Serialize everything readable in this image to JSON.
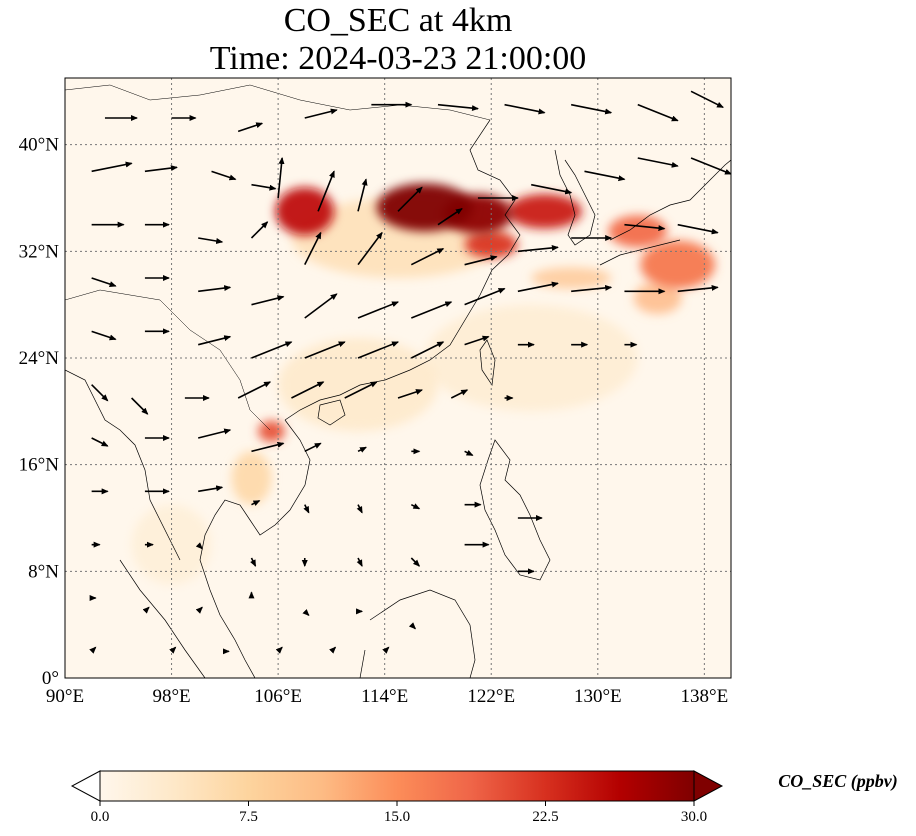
{
  "chart_data": {
    "type": "heatmap",
    "title": "CO_SEC at 4km",
    "subtitle": "Time: 2024-03-23 21:00:00",
    "xlabel": "",
    "ylabel": "",
    "x_ticks": [
      "90°E",
      "98°E",
      "106°E",
      "114°E",
      "122°E",
      "130°E",
      "138°E"
    ],
    "x_tick_values": [
      90,
      98,
      106,
      114,
      122,
      130,
      138
    ],
    "y_ticks": [
      "0°",
      "8°N",
      "16°N",
      "24°N",
      "32°N",
      "40°N"
    ],
    "y_tick_values": [
      0,
      8,
      16,
      24,
      32,
      40
    ],
    "xlim": [
      90,
      140
    ],
    "ylim": [
      0,
      45
    ],
    "grid": true,
    "colorbar": {
      "label": "CO_SEC (ppbv)",
      "ticks": [
        "0.0",
        "7.5",
        "15.0",
        "22.5",
        "30.0"
      ],
      "tick_values": [
        0,
        7.5,
        15,
        22.5,
        30
      ],
      "range": [
        0,
        30
      ],
      "extend": "both",
      "colormap": "OrRd",
      "colors": [
        "#fff7ec",
        "#fee8c8",
        "#fdd49e",
        "#fdbb84",
        "#fc8d59",
        "#ef6548",
        "#d7301f",
        "#b30000",
        "#7f0000"
      ]
    },
    "plumes": [
      {
        "lon": 108.0,
        "lat": 35.0,
        "dlon": 2.2,
        "dlat": 1.8,
        "value": 25
      },
      {
        "lon": 117.0,
        "lat": 35.3,
        "dlon": 3.6,
        "dlat": 1.8,
        "value": 32
      },
      {
        "lon": 121.0,
        "lat": 34.8,
        "dlon": 2.6,
        "dlat": 1.5,
        "value": 29
      },
      {
        "lon": 126.0,
        "lat": 35.0,
        "dlon": 2.8,
        "dlat": 1.3,
        "value": 24
      },
      {
        "lon": 122.0,
        "lat": 32.5,
        "dlon": 2.0,
        "dlat": 1.0,
        "value": 22
      },
      {
        "lon": 133.0,
        "lat": 33.5,
        "dlon": 2.2,
        "dlat": 1.2,
        "value": 18
      },
      {
        "lon": 136.0,
        "lat": 31.0,
        "dlon": 2.8,
        "dlat": 1.8,
        "value": 17
      },
      {
        "lon": 134.5,
        "lat": 28.5,
        "dlon": 1.8,
        "dlat": 1.2,
        "value": 12
      },
      {
        "lon": 128.0,
        "lat": 30.0,
        "dlon": 3.0,
        "dlat": 0.8,
        "value": 10
      },
      {
        "lon": 105.5,
        "lat": 18.5,
        "dlon": 1.0,
        "dlat": 0.8,
        "value": 20
      },
      {
        "lon": 104.0,
        "lat": 15.0,
        "dlon": 1.5,
        "dlat": 2.0,
        "value": 8
      },
      {
        "lon": 112.0,
        "lat": 22.0,
        "dlon": 6.0,
        "dlat": 3.5,
        "value": 4
      },
      {
        "lon": 125.0,
        "lat": 24.0,
        "dlon": 8.0,
        "dlat": 4.0,
        "value": 3
      },
      {
        "lon": 115.0,
        "lat": 33.0,
        "dlon": 8.0,
        "dlat": 3.0,
        "value": 6
      },
      {
        "lon": 98.0,
        "lat": 10.0,
        "dlon": 3.0,
        "dlat": 3.0,
        "value": 2.5
      }
    ],
    "wind_vectors": [
      {
        "lon": 92,
        "lat": 38,
        "u": 5,
        "v": 1
      },
      {
        "lon": 96,
        "lat": 38,
        "u": 4,
        "v": 0.5
      },
      {
        "lon": 101,
        "lat": 38,
        "u": 3,
        "v": -1
      },
      {
        "lon": 104,
        "lat": 37,
        "u": 3,
        "v": -0.5
      },
      {
        "lon": 106,
        "lat": 36,
        "u": 0.5,
        "v": 5
      },
      {
        "lon": 109,
        "lat": 35,
        "u": 2,
        "v": 5
      },
      {
        "lon": 112,
        "lat": 35,
        "u": 1,
        "v": 4
      },
      {
        "lon": 115,
        "lat": 35,
        "u": 3,
        "v": 3
      },
      {
        "lon": 118,
        "lat": 34,
        "u": 3,
        "v": 2
      },
      {
        "lon": 121,
        "lat": 36,
        "u": 5,
        "v": 0
      },
      {
        "lon": 125,
        "lat": 37,
        "u": 5,
        "v": -1
      },
      {
        "lon": 129,
        "lat": 38,
        "u": 5,
        "v": -1
      },
      {
        "lon": 133,
        "lat": 39,
        "u": 5,
        "v": -1
      },
      {
        "lon": 137,
        "lat": 39,
        "u": 5,
        "v": -2
      },
      {
        "lon": 93,
        "lat": 42,
        "u": 4,
        "v": 0
      },
      {
        "lon": 98,
        "lat": 42,
        "u": 3,
        "v": 0
      },
      {
        "lon": 103,
        "lat": 41,
        "u": 3,
        "v": 1
      },
      {
        "lon": 108,
        "lat": 42,
        "u": 4,
        "v": 1
      },
      {
        "lon": 113,
        "lat": 43,
        "u": 5,
        "v": 0
      },
      {
        "lon": 118,
        "lat": 43,
        "u": 5,
        "v": -0.5
      },
      {
        "lon": 123,
        "lat": 43,
        "u": 5,
        "v": -1
      },
      {
        "lon": 128,
        "lat": 43,
        "u": 5,
        "v": -1
      },
      {
        "lon": 133,
        "lat": 43,
        "u": 5,
        "v": -2
      },
      {
        "lon": 137,
        "lat": 44,
        "u": 4,
        "v": -2
      },
      {
        "lon": 92,
        "lat": 34,
        "u": 4,
        "v": 0
      },
      {
        "lon": 96,
        "lat": 34,
        "u": 3,
        "v": 0
      },
      {
        "lon": 100,
        "lat": 33,
        "u": 3,
        "v": -0.5
      },
      {
        "lon": 104,
        "lat": 33,
        "u": 2,
        "v": 2
      },
      {
        "lon": 108,
        "lat": 31,
        "u": 2,
        "v": 4
      },
      {
        "lon": 112,
        "lat": 31,
        "u": 3,
        "v": 4
      },
      {
        "lon": 116,
        "lat": 31,
        "u": 4,
        "v": 2
      },
      {
        "lon": 120,
        "lat": 31,
        "u": 4,
        "v": 1
      },
      {
        "lon": 124,
        "lat": 32,
        "u": 5,
        "v": 0.5
      },
      {
        "lon": 128,
        "lat": 33,
        "u": 5,
        "v": 0
      },
      {
        "lon": 132,
        "lat": 34,
        "u": 5,
        "v": -0.5
      },
      {
        "lon": 136,
        "lat": 34,
        "u": 5,
        "v": -1
      },
      {
        "lon": 92,
        "lat": 30,
        "u": 3,
        "v": -1
      },
      {
        "lon": 96,
        "lat": 30,
        "u": 3,
        "v": 0
      },
      {
        "lon": 100,
        "lat": 29,
        "u": 4,
        "v": 0.5
      },
      {
        "lon": 104,
        "lat": 28,
        "u": 4,
        "v": 1
      },
      {
        "lon": 108,
        "lat": 27,
        "u": 4,
        "v": 3
      },
      {
        "lon": 112,
        "lat": 27,
        "u": 5,
        "v": 2
      },
      {
        "lon": 116,
        "lat": 27,
        "u": 5,
        "v": 2
      },
      {
        "lon": 120,
        "lat": 28,
        "u": 5,
        "v": 2
      },
      {
        "lon": 124,
        "lat": 29,
        "u": 5,
        "v": 1
      },
      {
        "lon": 128,
        "lat": 29,
        "u": 5,
        "v": 0.5
      },
      {
        "lon": 132,
        "lat": 29,
        "u": 5,
        "v": 0
      },
      {
        "lon": 136,
        "lat": 29,
        "u": 5,
        "v": 0.5
      },
      {
        "lon": 92,
        "lat": 26,
        "u": 3,
        "v": -1
      },
      {
        "lon": 96,
        "lat": 26,
        "u": 3,
        "v": 0
      },
      {
        "lon": 100,
        "lat": 25,
        "u": 4,
        "v": 1
      },
      {
        "lon": 104,
        "lat": 24,
        "u": 5,
        "v": 2
      },
      {
        "lon": 108,
        "lat": 24,
        "u": 5,
        "v": 2
      },
      {
        "lon": 112,
        "lat": 24,
        "u": 5,
        "v": 2
      },
      {
        "lon": 116,
        "lat": 24,
        "u": 4,
        "v": 2
      },
      {
        "lon": 120,
        "lat": 25,
        "u": 3,
        "v": 1
      },
      {
        "lon": 124,
        "lat": 25,
        "u": 2,
        "v": 0
      },
      {
        "lon": 128,
        "lat": 25,
        "u": 2,
        "v": 0
      },
      {
        "lon": 132,
        "lat": 25,
        "u": 1.5,
        "v": 0
      },
      {
        "lon": 92,
        "lat": 22,
        "u": 2,
        "v": -2
      },
      {
        "lon": 95,
        "lat": 21,
        "u": 2,
        "v": -2
      },
      {
        "lon": 99,
        "lat": 21,
        "u": 3,
        "v": 0
      },
      {
        "lon": 103,
        "lat": 21,
        "u": 4,
        "v": 2
      },
      {
        "lon": 107,
        "lat": 21,
        "u": 4,
        "v": 2
      },
      {
        "lon": 111,
        "lat": 21,
        "u": 4,
        "v": 2
      },
      {
        "lon": 115,
        "lat": 21,
        "u": 3,
        "v": 1
      },
      {
        "lon": 119,
        "lat": 21,
        "u": 2,
        "v": 1
      },
      {
        "lon": 123,
        "lat": 21,
        "u": 1,
        "v": 0
      },
      {
        "lon": 92,
        "lat": 18,
        "u": 2,
        "v": -1
      },
      {
        "lon": 96,
        "lat": 18,
        "u": 3,
        "v": 0
      },
      {
        "lon": 100,
        "lat": 18,
        "u": 4,
        "v": 1
      },
      {
        "lon": 104,
        "lat": 17,
        "u": 4,
        "v": 1
      },
      {
        "lon": 108,
        "lat": 17,
        "u": 2,
        "v": 1
      },
      {
        "lon": 112,
        "lat": 17,
        "u": 1,
        "v": 0.5
      },
      {
        "lon": 116,
        "lat": 17,
        "u": 1,
        "v": 0
      },
      {
        "lon": 120,
        "lat": 17,
        "u": 1,
        "v": -0.5
      },
      {
        "lon": 92,
        "lat": 14,
        "u": 2,
        "v": 0
      },
      {
        "lon": 96,
        "lat": 14,
        "u": 3,
        "v": 0
      },
      {
        "lon": 100,
        "lat": 14,
        "u": 3,
        "v": 0.5
      },
      {
        "lon": 104,
        "lat": 13,
        "u": 1,
        "v": 0.5
      },
      {
        "lon": 108,
        "lat": 13,
        "u": 0.5,
        "v": -1
      },
      {
        "lon": 112,
        "lat": 13,
        "u": 0.5,
        "v": -1
      },
      {
        "lon": 116,
        "lat": 13,
        "u": 1,
        "v": -0.5
      },
      {
        "lon": 120,
        "lat": 13,
        "u": 2,
        "v": 0
      },
      {
        "lon": 124,
        "lat": 12,
        "u": 3,
        "v": 0
      },
      {
        "lon": 92,
        "lat": 10,
        "u": 1,
        "v": 0
      },
      {
        "lon": 96,
        "lat": 10,
        "u": 1,
        "v": 0
      },
      {
        "lon": 100,
        "lat": 10,
        "u": 0.5,
        "v": -0.5
      },
      {
        "lon": 104,
        "lat": 9,
        "u": 0.5,
        "v": -1
      },
      {
        "lon": 108,
        "lat": 9,
        "u": 0,
        "v": -1
      },
      {
        "lon": 112,
        "lat": 9,
        "u": 0.5,
        "v": -1
      },
      {
        "lon": 116,
        "lat": 9,
        "u": 1,
        "v": -1
      },
      {
        "lon": 120,
        "lat": 10,
        "u": 3,
        "v": 0
      },
      {
        "lon": 124,
        "lat": 8,
        "u": 2,
        "v": 0
      },
      {
        "lon": 92,
        "lat": 6,
        "u": 0.5,
        "v": 0
      },
      {
        "lon": 96,
        "lat": 5,
        "u": 0.5,
        "v": 0.5
      },
      {
        "lon": 100,
        "lat": 5,
        "u": 0.5,
        "v": 0.5
      },
      {
        "lon": 104,
        "lat": 6,
        "u": 0,
        "v": 0.7
      },
      {
        "lon": 108,
        "lat": 5,
        "u": 0.5,
        "v": -0.5
      },
      {
        "lon": 112,
        "lat": 5,
        "u": 0.5,
        "v": 0
      },
      {
        "lon": 116,
        "lat": 4,
        "u": 0.5,
        "v": -0.5
      },
      {
        "lon": 92,
        "lat": 2,
        "u": 0.5,
        "v": 0.5
      },
      {
        "lon": 98,
        "lat": 2,
        "u": 0.5,
        "v": 0.5
      },
      {
        "lon": 102,
        "lat": 2,
        "u": 0.5,
        "v": 0
      },
      {
        "lon": 106,
        "lat": 2,
        "u": 0.5,
        "v": 0.5
      },
      {
        "lon": 110,
        "lat": 2,
        "u": 0.5,
        "v": 0.5
      },
      {
        "lon": 114,
        "lat": 2,
        "u": 0.5,
        "v": 0.5
      }
    ]
  },
  "colorbar_label": "CO_SEC (ppbv)"
}
